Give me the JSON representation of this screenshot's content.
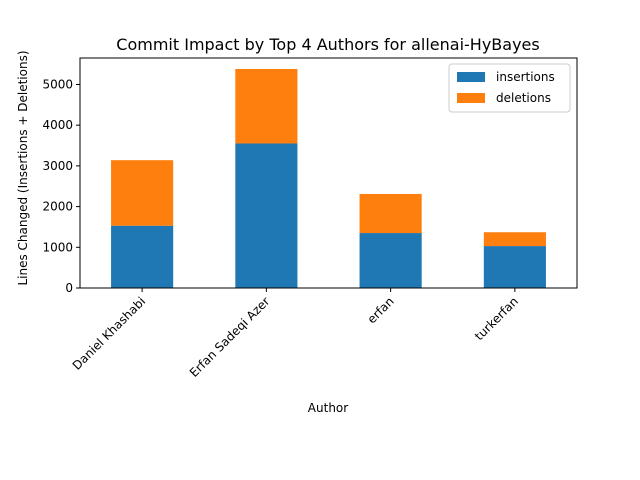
{
  "chart_data": {
    "type": "bar",
    "stacked": true,
    "title": "Commit Impact by Top 4 Authors for allenai-HyBayes",
    "xlabel": "Author",
    "ylabel": "Lines Changed (Insertions + Deletions)",
    "categories": [
      "Daniel Khashabi",
      "Erfan Sadeqi Azer",
      "erfan",
      "turkerfan"
    ],
    "series": [
      {
        "name": "insertions",
        "color": "#1f77b4",
        "values": [
          1530,
          3550,
          1350,
          1030
        ]
      },
      {
        "name": "deletions",
        "color": "#ff7f0e",
        "values": [
          1610,
          1830,
          960,
          340
        ]
      }
    ],
    "yticks": [
      0,
      1000,
      2000,
      3000,
      4000,
      5000
    ],
    "ytick_labels": [
      "0",
      "1000",
      "2000",
      "3000",
      "4000",
      "5000"
    ],
    "ylim": [
      0,
      5650
    ],
    "grid": false,
    "legend_position": "top-right"
  }
}
